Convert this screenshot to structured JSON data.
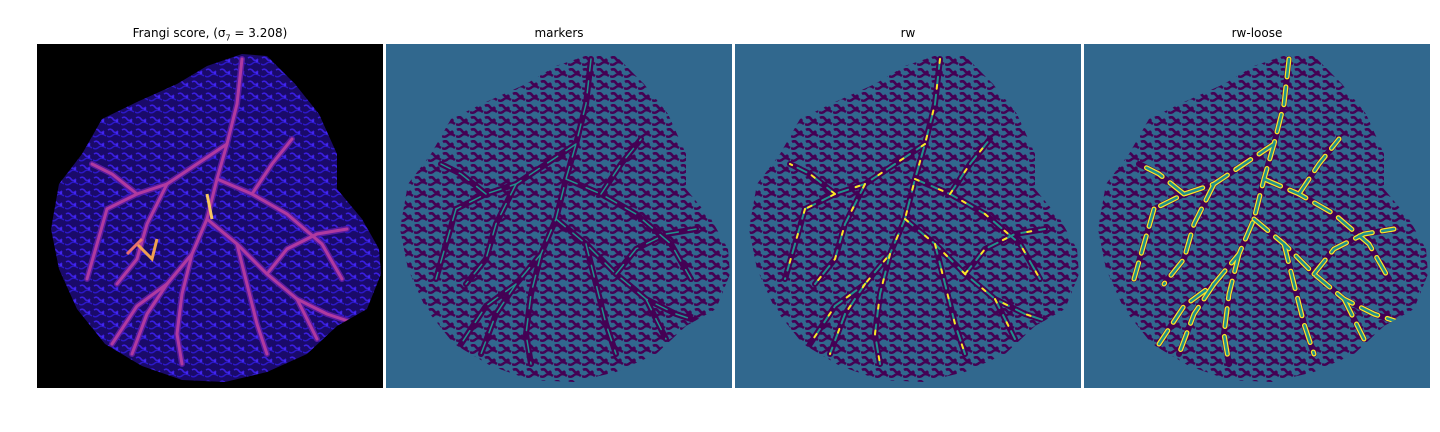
{
  "figure": {
    "panels": [
      {
        "title": "Frangi score, (σ",
        "title_sub": "7",
        "title_rest": " = 3.208)"
      },
      {
        "title": "markers"
      },
      {
        "title": "rw"
      },
      {
        "title": "rw-loose"
      }
    ]
  },
  "colors": {
    "frangi_background": "#000000",
    "frangi_low": "#2a0fb0",
    "frangi_mid": "#8a24a8",
    "frangi_high": "#f0a050",
    "segmentation_background": "#31688e",
    "segmentation_dark": "#440154",
    "segmentation_teal": "#21918c",
    "segmentation_yellow": "#fde725"
  }
}
